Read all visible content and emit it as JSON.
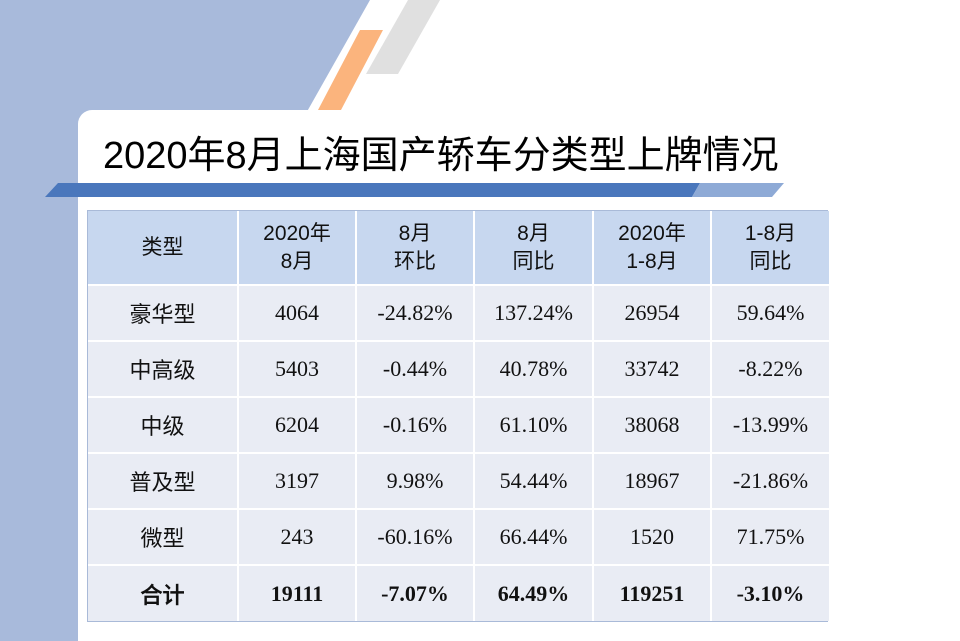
{
  "slide": {
    "title": "2020年8月上海国产轿车分类型上牌情况"
  },
  "colors": {
    "side_panel": "#a8badb",
    "accent_orange": "#fbb47d",
    "accent_gray": "#e0e0e0",
    "bar_dark": "#4a77bc",
    "bar_light": "#8eaad6",
    "header_bg": "#c7d7ef",
    "row_bg": "#e9ecf4"
  },
  "table": {
    "header": [
      [
        "类型"
      ],
      [
        "2020年",
        "8月"
      ],
      [
        "8月",
        "环比"
      ],
      [
        "8月",
        "同比"
      ],
      [
        "2020年",
        "1-8月"
      ],
      [
        "1-8月",
        "同比"
      ]
    ],
    "rows": [
      [
        "豪华型",
        "4064",
        "-24.82%",
        "137.24%",
        "26954",
        "59.64%"
      ],
      [
        "中高级",
        "5403",
        "-0.44%",
        "40.78%",
        "33742",
        "-8.22%"
      ],
      [
        "中级",
        "6204",
        "-0.16%",
        "61.10%",
        "38068",
        "-13.99%"
      ],
      [
        "普及型",
        "3197",
        "9.98%",
        "54.44%",
        "18967",
        "-21.86%"
      ],
      [
        "微型",
        "243",
        "-60.16%",
        "66.44%",
        "1520",
        "71.75%"
      ]
    ],
    "total": [
      "合计",
      "19111",
      "-7.07%",
      "64.49%",
      "119251",
      "-3.10%"
    ]
  }
}
